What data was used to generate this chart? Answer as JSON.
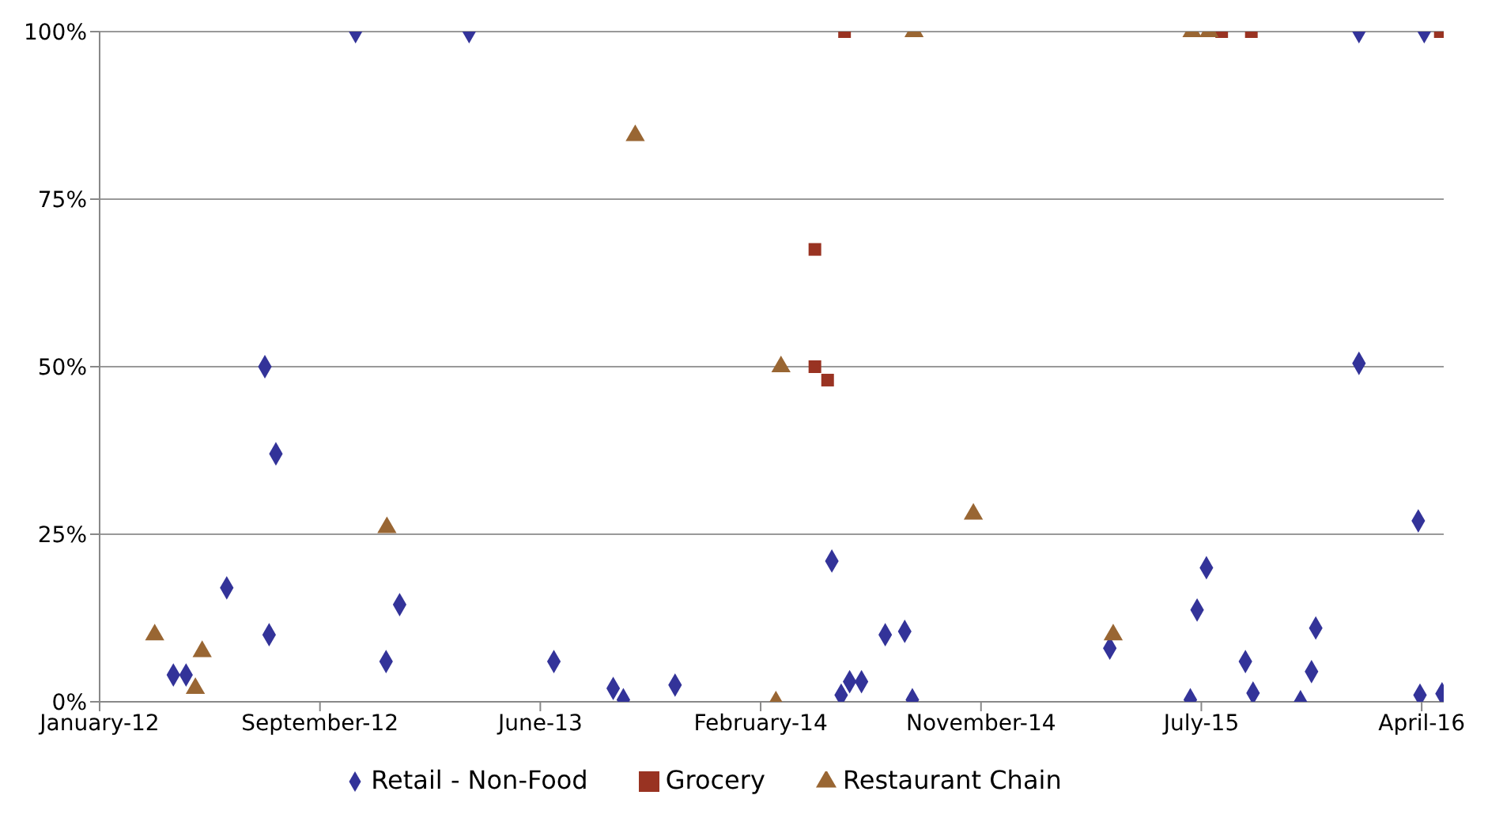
{
  "chart_data": {
    "type": "scatter",
    "xlim": [
      "2012-01-01",
      "2016-05-05"
    ],
    "xticks": [
      {
        "value": "2012-01-01",
        "label": "January-12"
      },
      {
        "value": "2012-09-17",
        "label": "September-12"
      },
      {
        "value": "2013-06-04",
        "label": "June-13"
      },
      {
        "value": "2014-02-19",
        "label": "February-14"
      },
      {
        "value": "2014-11-06",
        "label": "November-14"
      },
      {
        "value": "2015-07-24",
        "label": "July-15"
      },
      {
        "value": "2016-04-09",
        "label": "April-16"
      }
    ],
    "ylim": [
      0,
      100
    ],
    "yticks": [
      {
        "value": 0,
        "label": "0%"
      },
      {
        "value": 25,
        "label": "25%"
      },
      {
        "value": 50,
        "label": "50%"
      },
      {
        "value": 75,
        "label": "75%"
      },
      {
        "value": 100,
        "label": "100%"
      }
    ],
    "grid": "y",
    "legend": "bottom",
    "series": [
      {
        "name": "Retail - Non-Food",
        "color": "#333399",
        "marker": "diamond",
        "x": [
          "2012-03-28",
          "2012-04-12",
          "2012-05-30",
          "2012-07-14",
          "2012-07-19",
          "2012-07-27",
          "2012-10-29",
          "2012-12-04",
          "2012-12-20",
          "2013-03-12",
          "2013-06-20",
          "2013-08-29",
          "2013-09-10",
          "2013-11-10",
          "2014-05-14",
          "2014-05-25",
          "2014-06-04",
          "2014-06-18",
          "2014-07-16",
          "2014-08-08",
          "2014-08-17",
          "2015-04-07",
          "2015-07-11",
          "2015-07-19",
          "2015-07-30",
          "2015-09-14",
          "2015-09-23",
          "2015-11-18",
          "2015-12-01",
          "2015-12-06",
          "2016-01-26",
          "2016-01-26",
          "2016-04-05",
          "2016-04-07",
          "2016-04-12",
          "2016-05-03"
        ],
        "values": [
          4,
          4,
          17,
          50,
          10,
          37,
          100,
          6,
          14.5,
          100,
          6,
          2,
          0.3,
          2.5,
          21,
          1,
          3,
          3,
          10,
          10.5,
          0.3,
          8,
          0.3,
          13.7,
          20,
          6,
          1.3,
          0,
          4.5,
          11,
          100,
          50.5,
          27,
          1,
          100,
          1.2
        ]
      },
      {
        "name": "Grocery",
        "color": "#993322",
        "marker": "square",
        "x": [
          "2014-04-24",
          "2014-04-24",
          "2014-05-09",
          "2014-05-29",
          "2015-08-17",
          "2015-09-21",
          "2016-05-01"
        ],
        "values": [
          67.5,
          50,
          48,
          100,
          100,
          100,
          100
        ]
      },
      {
        "name": "Restaurant Chain",
        "color": "#996633",
        "marker": "triangle",
        "x": [
          "2012-03-06",
          "2012-04-23",
          "2012-05-01",
          "2012-12-05",
          "2013-09-24",
          "2014-03-09",
          "2014-03-15",
          "2014-08-19",
          "2014-10-28",
          "2015-04-11",
          "2015-07-13",
          "2015-08-02"
        ],
        "values": [
          10,
          2,
          7.5,
          26,
          84.5,
          0,
          50,
          100,
          28,
          10,
          100,
          100
        ]
      }
    ]
  }
}
